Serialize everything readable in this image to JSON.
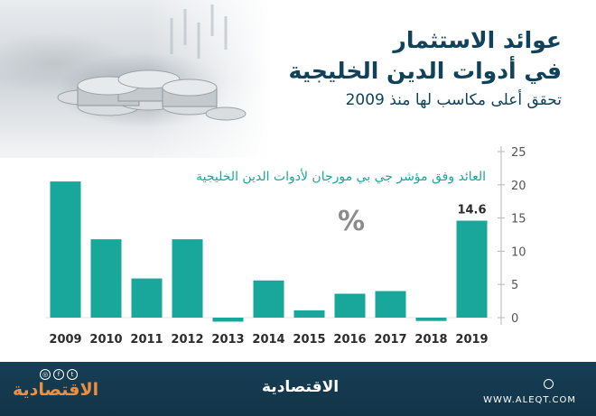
{
  "header": {
    "title_line1": "عوائد الاستثمار",
    "title_line2": "في أدوات الدين الخليجية",
    "subtitle": "تحقق أعلى مكاسب لها منذ 2009"
  },
  "chart_data": {
    "type": "bar",
    "title": "العائد وفق مؤشر جي بي مورجان لأدوات الدين الخليجية",
    "unit_symbol": "%",
    "categories": [
      "2009",
      "2010",
      "2011",
      "2012",
      "2013",
      "2014",
      "2015",
      "2016",
      "2017",
      "2018",
      "2019"
    ],
    "values": [
      20.5,
      11.8,
      5.9,
      11.8,
      -0.6,
      5.6,
      1.1,
      3.6,
      4.0,
      -0.5,
      14.6
    ],
    "data_labels": {
      "2019": "14.6"
    },
    "ylim": [
      0,
      25
    ],
    "yticks": [
      0,
      5,
      10,
      15,
      20,
      25
    ],
    "y_axis_position": "right",
    "bar_color": "#1aa79b",
    "axis_color": "#b7b7b7"
  },
  "footer": {
    "logo_text": "الاقتصادية",
    "url": "WWW.ALEQT.COM",
    "brand_text": "الاقتصادية",
    "social_icons": [
      "instagram-icon",
      "facebook-icon",
      "twitter-icon"
    ],
    "background_color": "#173f56",
    "brand_color": "#ed8f3e"
  }
}
